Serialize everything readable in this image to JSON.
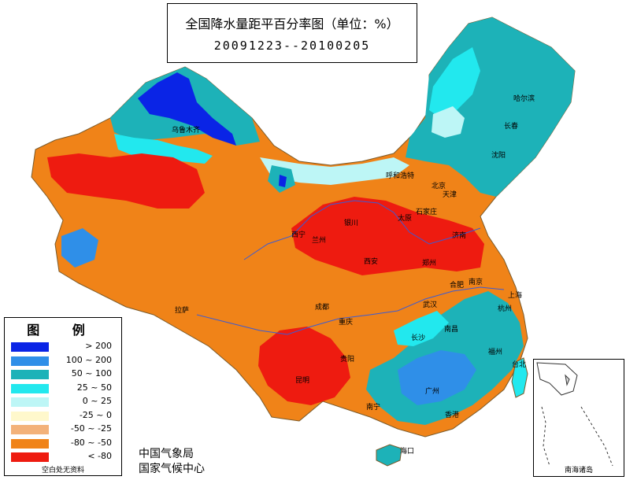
{
  "title": "全国降水量距平百分率图（单位：%）",
  "date_range": "20091223--20100205",
  "legend": {
    "title": "图 例",
    "entries": [
      {
        "label": "> 200",
        "color": "#0a24e6"
      },
      {
        "label": "100 ~ 200",
        "color": "#2f8fe8"
      },
      {
        "label": "50 ~ 100",
        "color": "#1db2b8"
      },
      {
        "label": "25 ~ 50",
        "color": "#22e8ee"
      },
      {
        "label": "0 ~ 25",
        "color": "#bdf6f6"
      },
      {
        "label": "-25 ~ 0",
        "color": "#fff8cc"
      },
      {
        "label": "-50 ~ -25",
        "color": "#f3b27a"
      },
      {
        "label": "-80 ~ -50",
        "color": "#f08318"
      },
      {
        "label": "< -80",
        "color": "#ee1b10"
      }
    ],
    "note": "空白处无资料"
  },
  "footer": {
    "line1": "中国气象局",
    "line2": "国家气候中心"
  },
  "inset_label": "南海诸岛",
  "cities": [
    {
      "name": "乌鲁木齐"
    },
    {
      "name": "哈尔滨"
    },
    {
      "name": "长春"
    },
    {
      "name": "沈阳"
    },
    {
      "name": "呼和浩特"
    },
    {
      "name": "北京"
    },
    {
      "name": "天津"
    },
    {
      "name": "石家庄"
    },
    {
      "name": "太原"
    },
    {
      "name": "银川"
    },
    {
      "name": "济南"
    },
    {
      "name": "西宁"
    },
    {
      "name": "兰州"
    },
    {
      "name": "西安"
    },
    {
      "name": "郑州"
    },
    {
      "name": "合肥"
    },
    {
      "name": "南京"
    },
    {
      "name": "上海"
    },
    {
      "name": "拉萨"
    },
    {
      "name": "成都"
    },
    {
      "name": "武汉"
    },
    {
      "name": "重庆"
    },
    {
      "name": "杭州"
    },
    {
      "name": "南昌"
    },
    {
      "name": "长沙"
    },
    {
      "name": "福州"
    },
    {
      "name": "贵阳"
    },
    {
      "name": "台北"
    },
    {
      "name": "昆明"
    },
    {
      "name": "广州"
    },
    {
      "name": "南宁"
    },
    {
      "name": "香港"
    },
    {
      "name": "海口"
    }
  ]
}
